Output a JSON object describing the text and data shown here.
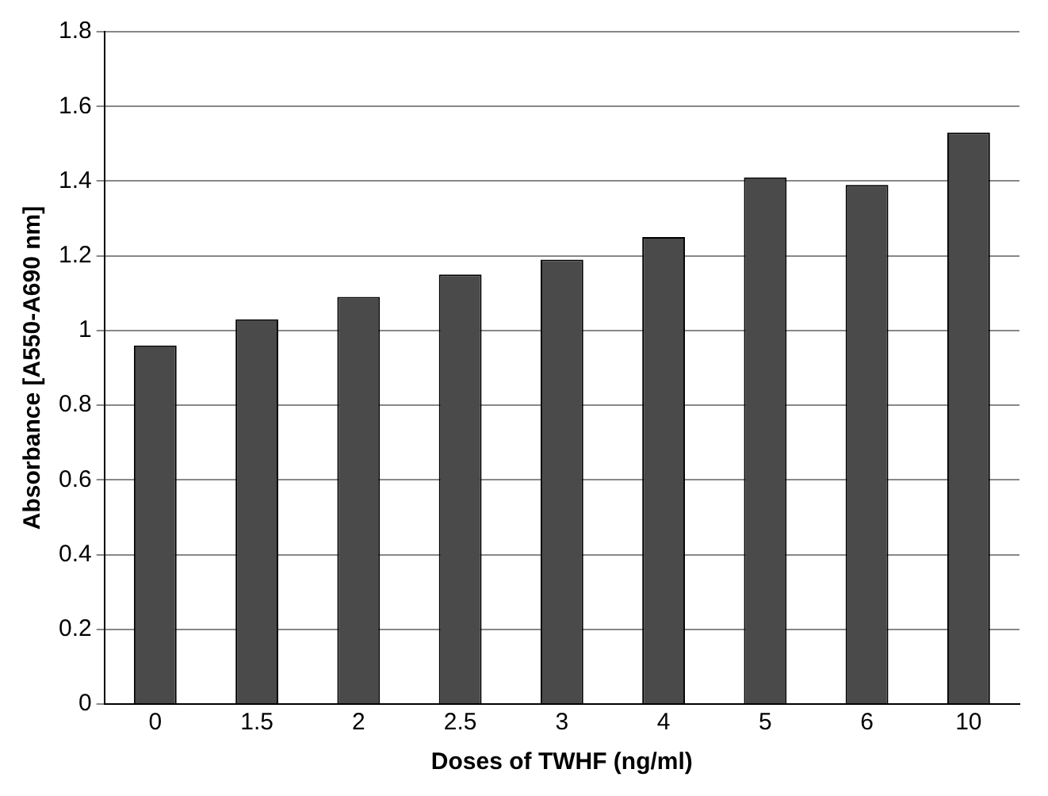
{
  "chart_data": {
    "type": "bar",
    "xlabel": "Doses of TWHF (ng/ml)",
    "ylabel": "Absorbance [A550-A690 nm]",
    "categories": [
      "0",
      "1.5",
      "2",
      "2.5",
      "3",
      "4",
      "5",
      "6",
      "10"
    ],
    "values": [
      0.96,
      1.03,
      1.09,
      1.15,
      1.19,
      1.25,
      1.41,
      1.39,
      1.53
    ],
    "color": "#4a4a4a",
    "ylim": [
      0,
      1.8
    ],
    "yticks": [
      0,
      0.2,
      0.4,
      0.6,
      0.8,
      1,
      1.2,
      1.4,
      1.6,
      1.8
    ],
    "grid": "y"
  }
}
